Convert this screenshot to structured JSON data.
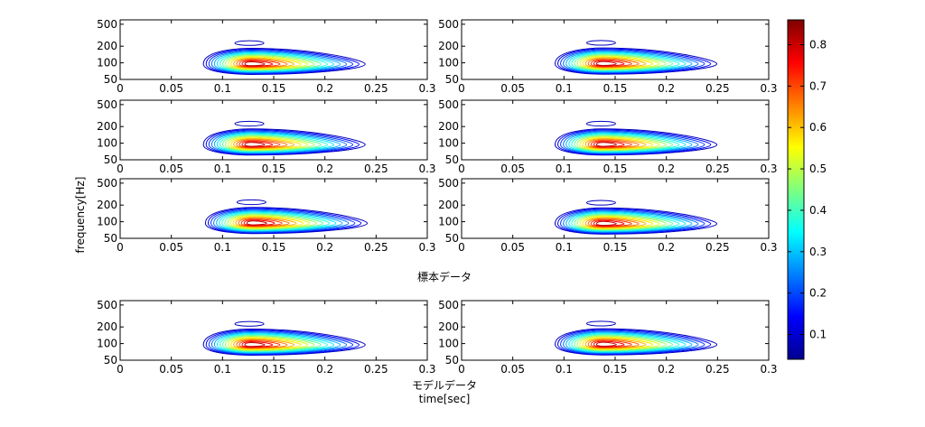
{
  "chart_data": {
    "type": "contour",
    "grid_rows": 4,
    "grid_cols": 2,
    "panels": [
      {
        "row": 0,
        "col": 0,
        "peak_t": 0.128,
        "peak_f": 95
      },
      {
        "row": 0,
        "col": 1,
        "peak_t": 0.138,
        "peak_f": 96
      },
      {
        "row": 1,
        "col": 0,
        "peak_t": 0.128,
        "peak_f": 94
      },
      {
        "row": 1,
        "col": 1,
        "peak_t": 0.138,
        "peak_f": 94
      },
      {
        "row": 2,
        "col": 0,
        "peak_t": 0.13,
        "peak_f": 94
      },
      {
        "row": 2,
        "col": 1,
        "peak_t": 0.138,
        "peak_f": 92
      },
      {
        "row": 3,
        "col": 0,
        "peak_t": 0.128,
        "peak_f": 95
      },
      {
        "row": 3,
        "col": 1,
        "peak_t": 0.138,
        "peak_f": 96
      }
    ],
    "x_ticks": [
      "0",
      "0.05",
      "0.1",
      "0.15",
      "0.2",
      "0.25",
      "0.3"
    ],
    "y_ticks": [
      "50",
      "100",
      "200",
      "500"
    ],
    "xlim": [
      0,
      0.3
    ],
    "ylim": [
      50,
      600
    ],
    "y_scale": "log",
    "ylabel": "frequency[Hz]",
    "xlabel": "time[sec]",
    "group_label_top": "標本データ",
    "group_label_bottom": "モデルデータ",
    "colorbar": {
      "ticks": [
        "0.1",
        "0.2",
        "0.3",
        "0.4",
        "0.5",
        "0.6",
        "0.7",
        "0.8"
      ],
      "range": [
        0.04,
        0.86
      ],
      "colormap": "jet"
    },
    "contour_levels": 16,
    "max_value": 0.85
  }
}
